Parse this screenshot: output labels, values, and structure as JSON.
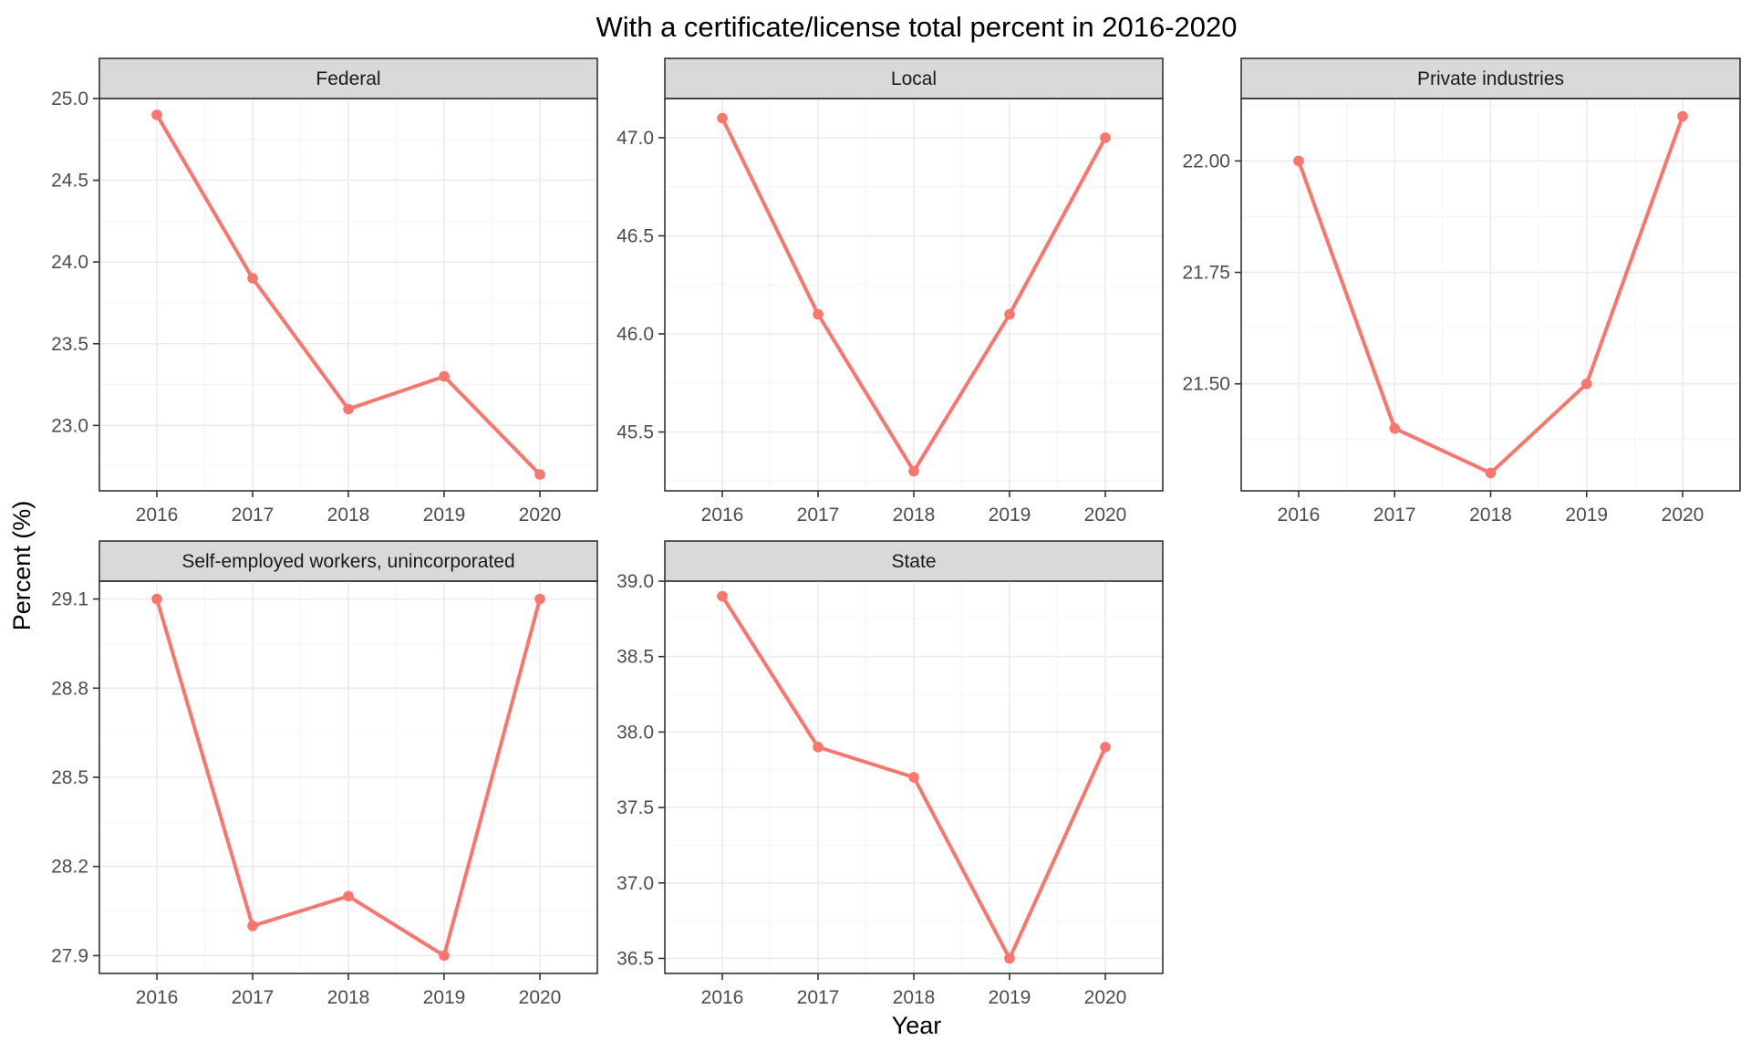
{
  "chart_data": {
    "type": "line",
    "title": "With a certificate/license total percent in 2016-2020",
    "xlabel": "Year",
    "ylabel": "Percent (%)",
    "series_color": "#f8766d",
    "grid": true,
    "x": [
      2016,
      2017,
      2018,
      2019,
      2020
    ],
    "x_tick_labels": [
      "2016",
      "2017",
      "2018",
      "2019",
      "2020"
    ],
    "panels": [
      {
        "strip": "Federal",
        "values": [
          24.9,
          23.9,
          23.1,
          23.3,
          22.7
        ],
        "ylim": [
          22.6,
          25.0
        ],
        "y_ticks": [
          23.0,
          23.5,
          24.0,
          24.5,
          25.0
        ],
        "y_tick_labels": [
          "23.0",
          "23.5",
          "24.0",
          "24.5",
          "25.0"
        ]
      },
      {
        "strip": "Local",
        "values": [
          47.1,
          46.1,
          45.3,
          46.1,
          47.0
        ],
        "ylim": [
          45.2,
          47.2
        ],
        "y_ticks": [
          45.5,
          46.0,
          46.5,
          47.0
        ],
        "y_tick_labels": [
          "45.5",
          "46.0",
          "46.5",
          "47.0"
        ]
      },
      {
        "strip": "Private industries",
        "values": [
          22.0,
          21.4,
          21.3,
          21.5,
          22.1
        ],
        "ylim": [
          21.26,
          22.14
        ],
        "y_ticks": [
          21.5,
          21.75,
          22.0
        ],
        "y_tick_labels": [
          "21.50",
          "21.75",
          "22.00"
        ]
      },
      {
        "strip": "Self-employed workers, unincorporated",
        "values": [
          29.1,
          28.0,
          28.1,
          27.9,
          29.1
        ],
        "ylim": [
          27.84,
          29.16
        ],
        "y_ticks": [
          27.9,
          28.2,
          28.5,
          28.8,
          29.1
        ],
        "y_tick_labels": [
          "27.9",
          "28.2",
          "28.5",
          "28.8",
          "29.1"
        ]
      },
      {
        "strip": "State",
        "values": [
          38.9,
          37.9,
          37.7,
          36.5,
          37.9
        ],
        "ylim": [
          36.4,
          39.0
        ],
        "y_ticks": [
          36.5,
          37.0,
          37.5,
          38.0,
          38.5,
          39.0
        ],
        "y_tick_labels": [
          "36.5",
          "37.0",
          "37.5",
          "38.0",
          "38.5",
          "39.0"
        ]
      }
    ]
  }
}
